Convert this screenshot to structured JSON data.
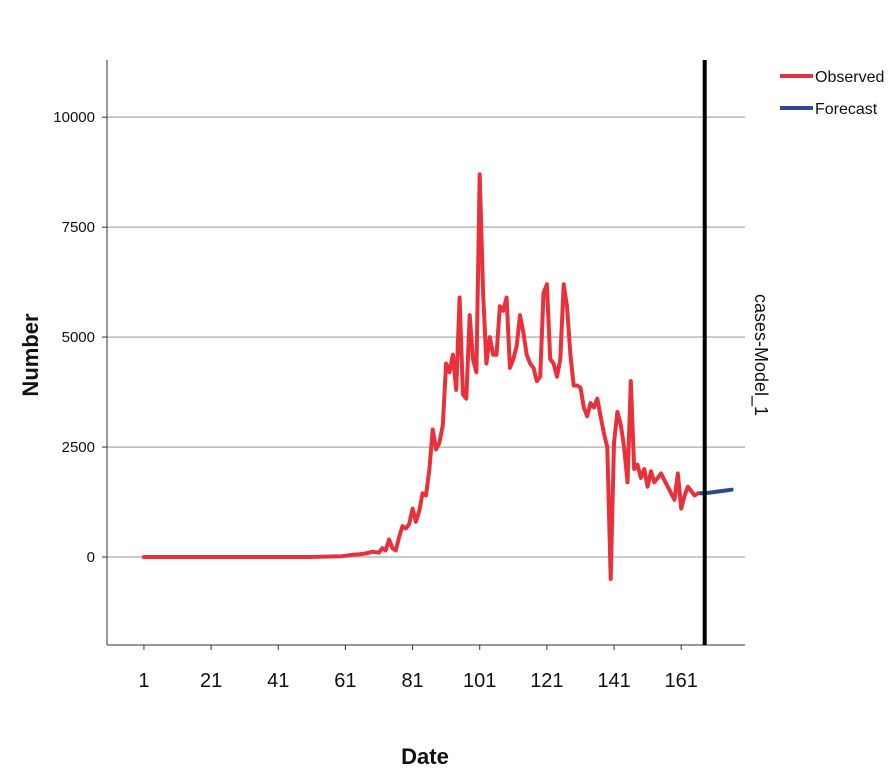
{
  "chart_data": {
    "type": "line",
    "xlabel": "Date",
    "ylabel": "Number",
    "panel_label": "cases-Model_1",
    "x_ticks": [
      1,
      21,
      41,
      61,
      81,
      101,
      121,
      141,
      161
    ],
    "y_ticks": [
      0,
      2500,
      5000,
      7500,
      10000
    ],
    "xlim": [
      -10,
      180
    ],
    "ylim": [
      -2000,
      11300
    ],
    "forecast_start": 168,
    "grid": "horizontal",
    "legend_position": "top-right",
    "legend": [
      {
        "name": "Observed",
        "color": "#e8313a"
      },
      {
        "name": "Forecast",
        "color": "#2e4a8f"
      }
    ],
    "series": [
      {
        "name": "Observed",
        "color": "#e8313a",
        "x": [
          1,
          10,
          20,
          30,
          40,
          50,
          55,
          60,
          63,
          65,
          67,
          69,
          71,
          72,
          73,
          74,
          75,
          76,
          77,
          78,
          79,
          80,
          81,
          82,
          83,
          84,
          85,
          86,
          87,
          88,
          89,
          90,
          91,
          92,
          93,
          94,
          95,
          96,
          97,
          98,
          99,
          100,
          101,
          102,
          103,
          104,
          105,
          106,
          107,
          108,
          109,
          110,
          111,
          112,
          113,
          114,
          115,
          116,
          117,
          118,
          119,
          120,
          121,
          122,
          123,
          124,
          125,
          126,
          127,
          128,
          129,
          130,
          131,
          132,
          133,
          134,
          135,
          136,
          137,
          138,
          139,
          140,
          141,
          142,
          143,
          144,
          145,
          146,
          147,
          148,
          149,
          150,
          151,
          152,
          153,
          154,
          155,
          156,
          157,
          158,
          159,
          160,
          161,
          162,
          163,
          164,
          165,
          166,
          167
        ],
        "values": [
          0,
          0,
          0,
          0,
          0,
          0,
          10,
          20,
          50,
          60,
          80,
          120,
          100,
          200,
          150,
          400,
          200,
          150,
          450,
          700,
          650,
          750,
          1100,
          800,
          1050,
          1450,
          1400,
          2000,
          2900,
          2450,
          2600,
          3000,
          4400,
          4200,
          4600,
          3800,
          5900,
          3700,
          3600,
          5500,
          4500,
          4200,
          8700,
          6000,
          4400,
          5000,
          4600,
          4600,
          5700,
          5600,
          5900,
          4300,
          4500,
          4800,
          5500,
          5100,
          4600,
          4400,
          4300,
          4000,
          4100,
          6000,
          6200,
          4500,
          4400,
          4100,
          4500,
          6200,
          5700,
          4600,
          3900,
          3900,
          3850,
          3400,
          3200,
          3500,
          3400,
          3600,
          3200,
          2800,
          2500,
          -500,
          2600,
          3300,
          3000,
          2500,
          1700,
          4000,
          2000,
          2100,
          1800,
          2000,
          1600,
          1950,
          1700,
          1800,
          1900,
          1750,
          1600,
          1450,
          1300,
          1900,
          1100,
          1400,
          1600,
          1500,
          1400,
          1450,
          1450
        ]
      },
      {
        "name": "Forecast",
        "color": "#2e4a8f",
        "x": [
          168,
          170,
          172,
          174,
          176
        ],
        "values": [
          1450,
          1470,
          1490,
          1510,
          1530
        ]
      }
    ]
  }
}
